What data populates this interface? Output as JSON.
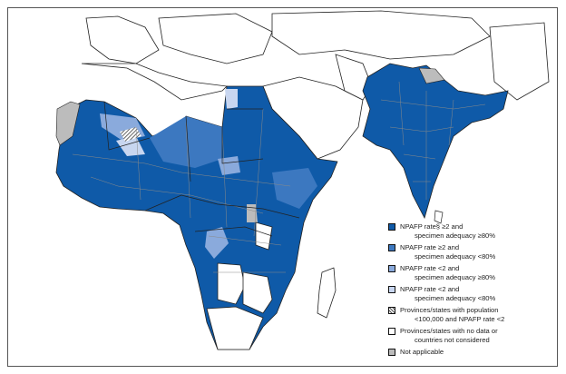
{
  "map": {
    "colors": {
      "rate_ge2_adeq_ge80": "#0f5aa8",
      "rate_ge2_adeq_lt80": "#3c78c0",
      "rate_lt2_adeq_ge80": "#8aaadc",
      "rate_lt2_adeq_lt80": "#c8d6f0",
      "no_data": "#ffffff",
      "not_applicable": "#bcbcbc",
      "borders_subnational": "#8a8a8a",
      "borders_country": "#222222"
    },
    "regions_shown": [
      "Africa",
      "South Asia"
    ]
  },
  "legend": {
    "items": [
      {
        "line1": "NPAFP rate§ ≥2 and",
        "line2": "specimen adequacy ≥80%",
        "swatch": "rate_ge2_adeq_ge80"
      },
      {
        "line1": "NPAFP rate ≥2 and",
        "line2": "specimen adequacy <80%",
        "swatch": "rate_ge2_adeq_lt80"
      },
      {
        "line1": "NPAFP rate <2 and",
        "line2": "specimen adequacy ≥80%",
        "swatch": "rate_lt2_adeq_ge80"
      },
      {
        "line1": "NPAFP rate <2 and",
        "line2": "specimen adequacy <80%",
        "swatch": "rate_lt2_adeq_lt80"
      },
      {
        "line1": "Provinces/states with population",
        "line2": "<100,000 and NPAFP rate <2",
        "swatch": "hatch"
      },
      {
        "line1": "Provinces/states with no data or",
        "line2": "countries not considered",
        "swatch": "no_data"
      },
      {
        "line1": "Not applicable",
        "line2": "",
        "swatch": "not_applicable"
      }
    ]
  }
}
